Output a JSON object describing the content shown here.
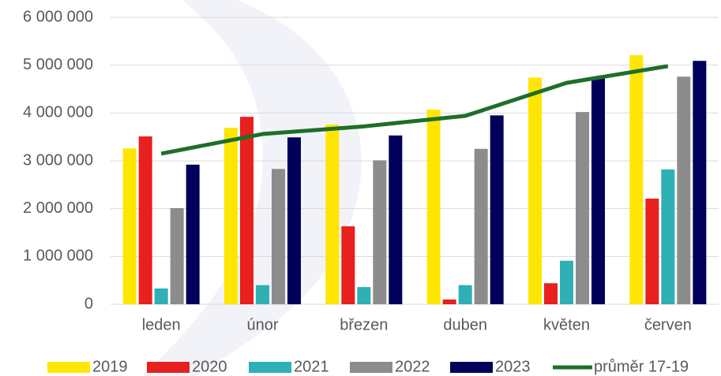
{
  "chart_data": {
    "type": "bar",
    "categories": [
      "leden",
      "únor",
      "březen",
      "duben",
      "květen",
      "červen"
    ],
    "series": [
      {
        "name": "2019",
        "color": "#ffe600",
        "values": [
          3260000,
          3690000,
          3760000,
          4070000,
          4740000,
          5210000
        ]
      },
      {
        "name": "2020",
        "color": "#e8201e",
        "values": [
          3510000,
          3920000,
          1630000,
          100000,
          440000,
          2210000
        ]
      },
      {
        "name": "2021",
        "color": "#2eb0b4",
        "values": [
          330000,
          400000,
          360000,
          400000,
          910000,
          2820000
        ]
      },
      {
        "name": "2022",
        "color": "#8c8c8c",
        "values": [
          2010000,
          2830000,
          3010000,
          3250000,
          4020000,
          4760000
        ]
      },
      {
        "name": "2023",
        "color": "#00005a",
        "values": [
          2920000,
          3490000,
          3530000,
          3950000,
          4740000,
          5090000
        ]
      },
      {
        "name": "průměr 17-19",
        "type": "line",
        "color": "#1e6e2a",
        "values": [
          3150000,
          3560000,
          3720000,
          3940000,
          4630000,
          4980000
        ]
      }
    ],
    "ylim": [
      0,
      6000000
    ],
    "yticks": [
      {
        "value": 0,
        "label": "0"
      },
      {
        "value": 1000000,
        "label": "1 000 000"
      },
      {
        "value": 2000000,
        "label": "2 000 000"
      },
      {
        "value": 3000000,
        "label": "3 000 000"
      },
      {
        "value": 4000000,
        "label": "4 000 000"
      },
      {
        "value": 5000000,
        "label": "5 000 000"
      },
      {
        "value": 6000000,
        "label": "6 000 000"
      }
    ],
    "grid": true
  }
}
